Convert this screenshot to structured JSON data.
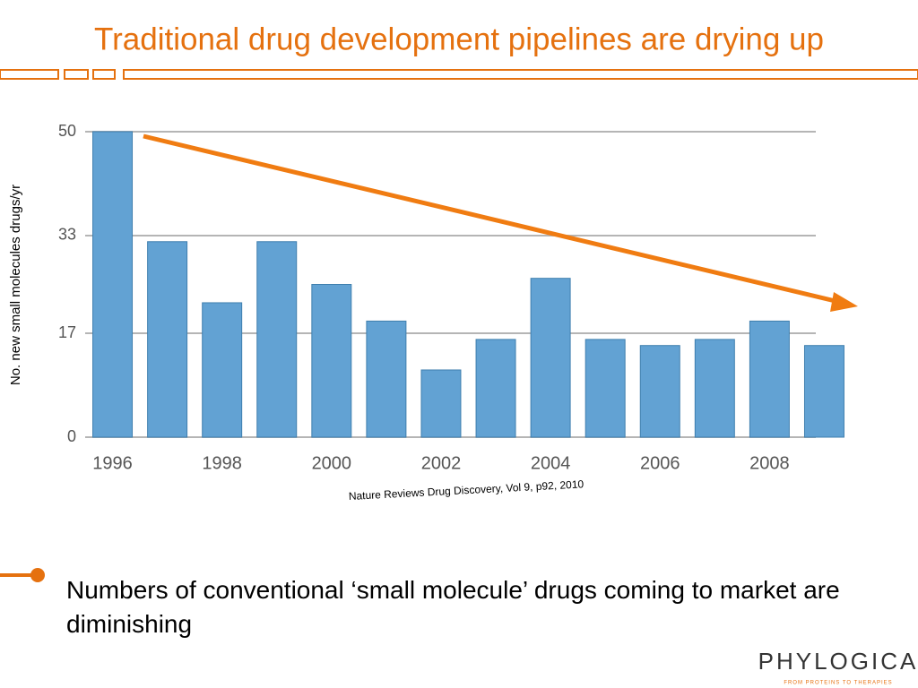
{
  "chart_data": {
    "type": "bar",
    "y_label": "No. new small molecules drugs/yr",
    "categories": [
      "1996",
      null,
      "1998",
      null,
      "2000",
      null,
      "2002",
      null,
      "2004",
      null,
      "2006",
      null,
      "2008",
      null
    ],
    "values": [
      50,
      32,
      22,
      32,
      25,
      19,
      11,
      16,
      26,
      16,
      15,
      16,
      19,
      15
    ],
    "color": "#62a2d3",
    "ylim": [
      0,
      50
    ],
    "yticks": [
      0,
      17,
      33,
      50
    ],
    "grid": true,
    "source": "Nature Reviews Drug Discovery, Vol 9, p92, 2010"
  },
  "slide": {
    "title": "Traditional drug development pipelines are drying up",
    "bullet": "Numbers of conventional ‘small molecule’ drugs coming to market are diminishing",
    "logo": "PHYLOGICA",
    "tagline": "FROM PROTEINS TO THERAPIES"
  }
}
